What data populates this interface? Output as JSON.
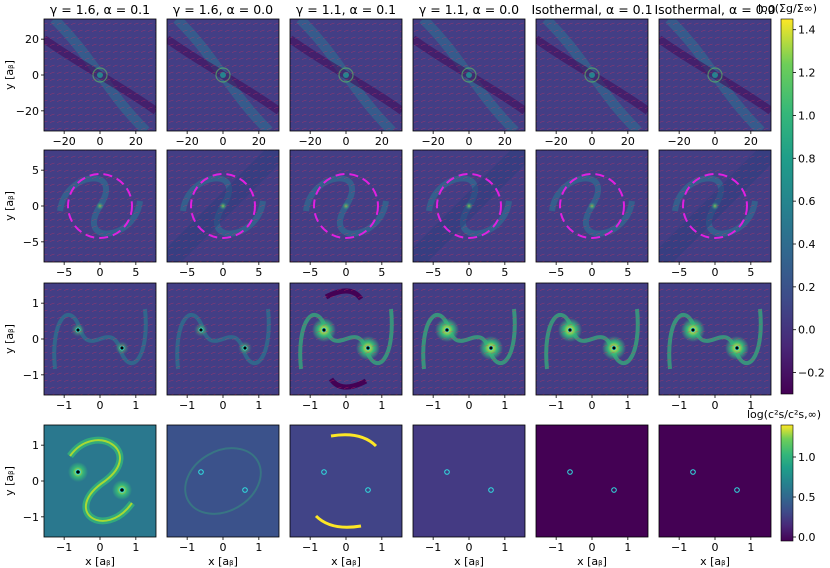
{
  "figure": {
    "columns": [
      {
        "title": "γ = 1.6, α = 0.1"
      },
      {
        "title": "γ = 1.6, α = 0.0"
      },
      {
        "title": "γ = 1.1, α = 0.1"
      },
      {
        "title": "γ = 1.1, α = 0.0"
      },
      {
        "title": "Isothermal, α = 0.1"
      },
      {
        "title": "Isothermal, α = 0.0"
      }
    ],
    "rows": [
      {
        "ylabel": "y [a_b]",
        "ylabel_display": "y [aᵦ]",
        "xticks": [
          "−20",
          "0",
          "20"
        ],
        "yticks": [
          "20",
          "0",
          "−20"
        ],
        "quantity": "surface density",
        "zoom": 25,
        "dashed_circle": false,
        "show_xlabel": false
      },
      {
        "ylabel_display": "y [aᵦ]",
        "xticks": [
          "−5",
          "0",
          "5"
        ],
        "yticks": [
          "5",
          "0",
          "−5"
        ],
        "quantity": "surface density",
        "zoom": 8,
        "dashed_circle": true,
        "show_xlabel": false
      },
      {
        "ylabel_display": "y [aᵦ]",
        "xticks": [
          "−1",
          "0",
          "1"
        ],
        "yticks": [
          "1",
          "0",
          "−1"
        ],
        "quantity": "surface density",
        "zoom": 1.25,
        "dashed_circle": false,
        "show_xlabel": false
      },
      {
        "ylabel_display": "y [aᵦ]",
        "xticks": [
          "−1",
          "0",
          "1"
        ],
        "yticks": [
          "1",
          "0",
          "−1"
        ],
        "quantity": "sound speed",
        "zoom": 1.25,
        "dashed_circle": false,
        "show_xlabel": true
      }
    ],
    "xlabel_display": "x [aᵦ]",
    "colorbar_top": {
      "label": "log(Σg/Σ∞)",
      "ticks": [
        "1.4",
        "1.2",
        "1.0",
        "0.8",
        "0.6",
        "0.4",
        "0.2",
        "0.0",
        "−0.2"
      ],
      "tick_values": [
        1.4,
        1.2,
        1.0,
        0.8,
        0.6,
        0.4,
        0.2,
        0.0,
        -0.2
      ],
      "range": [
        -0.3,
        1.45
      ]
    },
    "colorbar_bottom": {
      "label": "log(c²s/c²s,∞)",
      "ticks": [
        "1.0",
        "0.5",
        "0.0"
      ],
      "tick_values": [
        1.0,
        0.5,
        0.0
      ],
      "range": [
        -0.05,
        1.4
      ]
    },
    "colors": {
      "viridis_dark": "#440154",
      "viridis_purple": "#482878",
      "viridis_blue": "#3e4a89",
      "viridis_teal": "#26828e",
      "viridis_green": "#35b779",
      "viridis_yellow": "#fde725",
      "arrow_red": "#e0305a",
      "circle_magenta": "#e020e0",
      "binary_cyan": "#30e0e0"
    }
  }
}
